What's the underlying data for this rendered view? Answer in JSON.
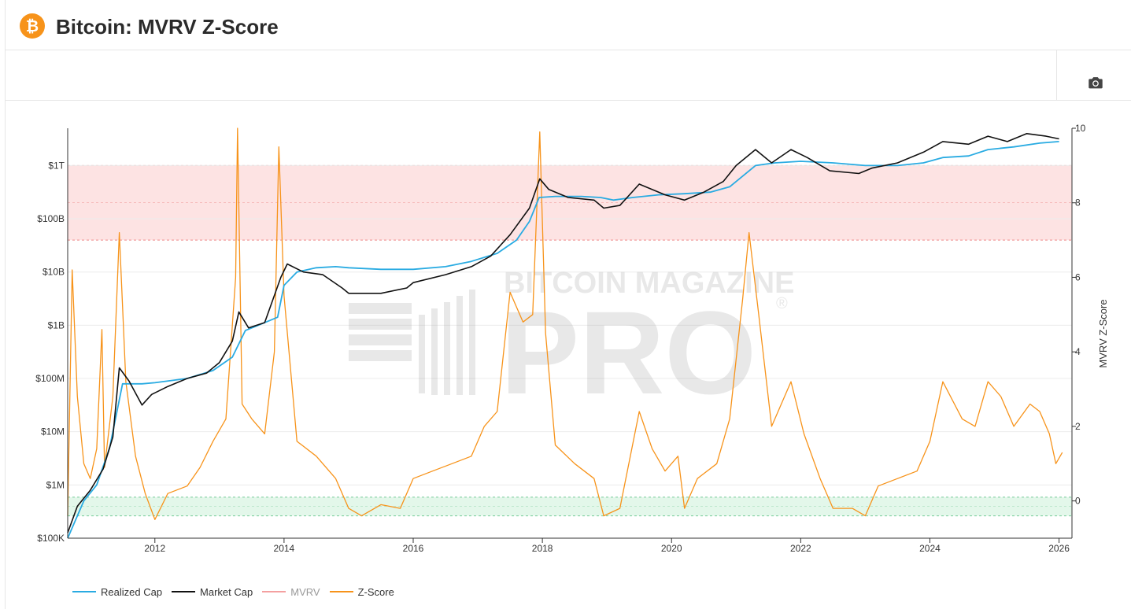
{
  "header": {
    "logo_glyph": "₿",
    "title": "Bitcoin: MVRV Z-Score"
  },
  "toolbar": {
    "camera_icon": "camera-icon"
  },
  "watermark": {
    "line1": "BITCOIN MAGAZINE",
    "line2": "PRO",
    "mark": "®"
  },
  "colors": {
    "realized_cap": "#29abe2",
    "market_cap": "#111111",
    "mvrv": "#f4a0a0",
    "z_score": "#f7931a",
    "red_band": "#fde3e3",
    "green_band": "#e3f7ea"
  },
  "chart_data": {
    "type": "line",
    "x_ticks": [
      "2012",
      "2014",
      "2016",
      "2018",
      "2020",
      "2022",
      "2024",
      "2026"
    ],
    "x_range": [
      2010.65,
      2026.2
    ],
    "y_left": {
      "scale": "log",
      "ticks": [
        "$100K",
        "$1M",
        "$10M",
        "$100M",
        "$1B",
        "$10B",
        "$100B",
        "$1T"
      ],
      "range_log10": [
        5,
        12.7
      ]
    },
    "y_right": {
      "label": "MVRV Z-Score",
      "ticks": [
        "0",
        "2",
        "4",
        "6",
        "8",
        "10"
      ],
      "range": [
        -1,
        10
      ]
    },
    "bands": [
      {
        "name": "red",
        "from": 7,
        "to": 9
      },
      {
        "name": "green",
        "from": -0.4,
        "to": 0.1
      }
    ],
    "legend_position": "bottom-left",
    "series": [
      {
        "name": "Realized Cap",
        "axis": "left-log10",
        "points": [
          [
            2010.65,
            5.0
          ],
          [
            2010.9,
            5.7
          ],
          [
            2011.1,
            6.0
          ],
          [
            2011.3,
            6.7
          ],
          [
            2011.5,
            7.9
          ],
          [
            2011.8,
            7.9
          ],
          [
            2012.0,
            7.92
          ],
          [
            2012.5,
            8.0
          ],
          [
            2012.9,
            8.15
          ],
          [
            2013.2,
            8.4
          ],
          [
            2013.4,
            8.9
          ],
          [
            2013.6,
            9.0
          ],
          [
            2013.9,
            9.15
          ],
          [
            2014.0,
            9.75
          ],
          [
            2014.2,
            10.0
          ],
          [
            2014.5,
            10.08
          ],
          [
            2014.8,
            10.1
          ],
          [
            2015.0,
            10.08
          ],
          [
            2015.5,
            10.05
          ],
          [
            2016.0,
            10.05
          ],
          [
            2016.5,
            10.1
          ],
          [
            2016.9,
            10.2
          ],
          [
            2017.3,
            10.35
          ],
          [
            2017.6,
            10.6
          ],
          [
            2017.8,
            10.95
          ],
          [
            2017.95,
            11.4
          ],
          [
            2018.2,
            11.42
          ],
          [
            2018.6,
            11.42
          ],
          [
            2018.9,
            11.4
          ],
          [
            2019.1,
            11.35
          ],
          [
            2019.4,
            11.4
          ],
          [
            2019.8,
            11.45
          ],
          [
            2020.2,
            11.47
          ],
          [
            2020.6,
            11.5
          ],
          [
            2020.9,
            11.6
          ],
          [
            2021.1,
            11.8
          ],
          [
            2021.3,
            12.0
          ],
          [
            2021.6,
            12.05
          ],
          [
            2022.0,
            12.08
          ],
          [
            2022.5,
            12.05
          ],
          [
            2023.0,
            12.0
          ],
          [
            2023.5,
            12.0
          ],
          [
            2023.9,
            12.05
          ],
          [
            2024.2,
            12.15
          ],
          [
            2024.6,
            12.18
          ],
          [
            2024.9,
            12.3
          ],
          [
            2025.3,
            12.35
          ],
          [
            2025.7,
            12.42
          ],
          [
            2026.0,
            12.45
          ]
        ]
      },
      {
        "name": "Market Cap",
        "axis": "left-log10",
        "points": [
          [
            2010.65,
            5.1
          ],
          [
            2010.8,
            5.6
          ],
          [
            2011.0,
            5.9
          ],
          [
            2011.2,
            6.3
          ],
          [
            2011.35,
            6.9
          ],
          [
            2011.45,
            8.2
          ],
          [
            2011.6,
            7.95
          ],
          [
            2011.8,
            7.5
          ],
          [
            2011.95,
            7.7
          ],
          [
            2012.2,
            7.85
          ],
          [
            2012.5,
            8.0
          ],
          [
            2012.8,
            8.1
          ],
          [
            2013.0,
            8.3
          ],
          [
            2013.2,
            8.7
          ],
          [
            2013.3,
            9.25
          ],
          [
            2013.45,
            8.95
          ],
          [
            2013.7,
            9.05
          ],
          [
            2013.95,
            9.9
          ],
          [
            2014.05,
            10.15
          ],
          [
            2014.3,
            10.0
          ],
          [
            2014.6,
            9.95
          ],
          [
            2014.9,
            9.7
          ],
          [
            2015.0,
            9.6
          ],
          [
            2015.5,
            9.6
          ],
          [
            2015.9,
            9.7
          ],
          [
            2016.0,
            9.8
          ],
          [
            2016.5,
            9.95
          ],
          [
            2016.9,
            10.1
          ],
          [
            2017.2,
            10.3
          ],
          [
            2017.5,
            10.7
          ],
          [
            2017.8,
            11.2
          ],
          [
            2017.96,
            11.75
          ],
          [
            2018.1,
            11.55
          ],
          [
            2018.4,
            11.4
          ],
          [
            2018.8,
            11.35
          ],
          [
            2018.95,
            11.2
          ],
          [
            2019.2,
            11.25
          ],
          [
            2019.5,
            11.65
          ],
          [
            2019.9,
            11.45
          ],
          [
            2020.2,
            11.35
          ],
          [
            2020.5,
            11.5
          ],
          [
            2020.8,
            11.7
          ],
          [
            2021.0,
            12.0
          ],
          [
            2021.3,
            12.3
          ],
          [
            2021.55,
            12.05
          ],
          [
            2021.85,
            12.3
          ],
          [
            2022.1,
            12.15
          ],
          [
            2022.45,
            11.9
          ],
          [
            2022.9,
            11.85
          ],
          [
            2023.1,
            11.95
          ],
          [
            2023.5,
            12.05
          ],
          [
            2023.9,
            12.25
          ],
          [
            2024.2,
            12.45
          ],
          [
            2024.6,
            12.4
          ],
          [
            2024.9,
            12.55
          ],
          [
            2025.2,
            12.45
          ],
          [
            2025.5,
            12.6
          ],
          [
            2025.8,
            12.55
          ],
          [
            2026.0,
            12.5
          ]
        ]
      },
      {
        "name": "MVRV",
        "axis": "right",
        "points": []
      },
      {
        "name": "Z-Score",
        "axis": "right",
        "points": [
          [
            2010.65,
            -0.4
          ],
          [
            2010.72,
            6.2
          ],
          [
            2010.8,
            2.8
          ],
          [
            2010.9,
            1.0
          ],
          [
            2011.0,
            0.6
          ],
          [
            2011.1,
            1.4
          ],
          [
            2011.18,
            4.6
          ],
          [
            2011.22,
            0.9
          ],
          [
            2011.35,
            2.8
          ],
          [
            2011.45,
            7.2
          ],
          [
            2011.55,
            3.2
          ],
          [
            2011.7,
            1.2
          ],
          [
            2011.85,
            0.2
          ],
          [
            2012.0,
            -0.5
          ],
          [
            2012.2,
            0.2
          ],
          [
            2012.5,
            0.4
          ],
          [
            2012.7,
            0.9
          ],
          [
            2012.9,
            1.6
          ],
          [
            2013.1,
            2.2
          ],
          [
            2013.25,
            6.0
          ],
          [
            2013.28,
            10.0
          ],
          [
            2013.35,
            2.6
          ],
          [
            2013.5,
            2.2
          ],
          [
            2013.7,
            1.8
          ],
          [
            2013.85,
            4.0
          ],
          [
            2013.92,
            9.5
          ],
          [
            2014.0,
            5.5
          ],
          [
            2014.2,
            1.6
          ],
          [
            2014.5,
            1.2
          ],
          [
            2014.8,
            0.6
          ],
          [
            2015.0,
            -0.2
          ],
          [
            2015.2,
            -0.4
          ],
          [
            2015.5,
            -0.1
          ],
          [
            2015.8,
            -0.2
          ],
          [
            2016.0,
            0.6
          ],
          [
            2016.3,
            0.8
          ],
          [
            2016.6,
            1.0
          ],
          [
            2016.9,
            1.2
          ],
          [
            2017.1,
            2.0
          ],
          [
            2017.3,
            2.4
          ],
          [
            2017.5,
            5.6
          ],
          [
            2017.7,
            4.8
          ],
          [
            2017.85,
            5.0
          ],
          [
            2017.96,
            9.9
          ],
          [
            2018.05,
            4.5
          ],
          [
            2018.2,
            1.5
          ],
          [
            2018.5,
            1.0
          ],
          [
            2018.8,
            0.6
          ],
          [
            2018.95,
            -0.4
          ],
          [
            2019.2,
            -0.2
          ],
          [
            2019.5,
            2.4
          ],
          [
            2019.7,
            1.4
          ],
          [
            2019.9,
            0.8
          ],
          [
            2020.1,
            1.2
          ],
          [
            2020.2,
            -0.2
          ],
          [
            2020.4,
            0.6
          ],
          [
            2020.7,
            1.0
          ],
          [
            2020.9,
            2.2
          ],
          [
            2021.1,
            5.4
          ],
          [
            2021.2,
            7.2
          ],
          [
            2021.35,
            5.0
          ],
          [
            2021.55,
            2.0
          ],
          [
            2021.85,
            3.2
          ],
          [
            2022.05,
            1.8
          ],
          [
            2022.3,
            0.6
          ],
          [
            2022.5,
            -0.2
          ],
          [
            2022.8,
            -0.2
          ],
          [
            2023.0,
            -0.4
          ],
          [
            2023.2,
            0.4
          ],
          [
            2023.5,
            0.6
          ],
          [
            2023.8,
            0.8
          ],
          [
            2024.0,
            1.6
          ],
          [
            2024.2,
            3.2
          ],
          [
            2024.5,
            2.2
          ],
          [
            2024.7,
            2.0
          ],
          [
            2024.9,
            3.2
          ],
          [
            2025.1,
            2.8
          ],
          [
            2025.3,
            2.0
          ],
          [
            2025.55,
            2.6
          ],
          [
            2025.7,
            2.4
          ],
          [
            2025.85,
            1.8
          ],
          [
            2025.95,
            1.0
          ],
          [
            2026.05,
            1.3
          ]
        ]
      }
    ],
    "legend": [
      "Realized Cap",
      "Market Cap",
      "MVRV",
      "Z-Score"
    ]
  }
}
